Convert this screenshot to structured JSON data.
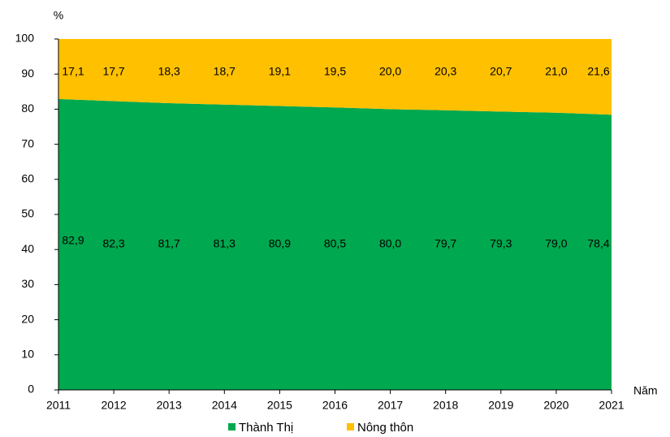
{
  "chart_data": {
    "type": "stacked_area",
    "x": [
      2011,
      2012,
      2013,
      2014,
      2015,
      2016,
      2017,
      2018,
      2019,
      2020,
      2021
    ],
    "series": [
      {
        "name": "Thành Thị",
        "color": "#00a84f",
        "values": [
          82.9,
          82.3,
          81.7,
          81.3,
          80.9,
          80.5,
          80.0,
          79.7,
          79.3,
          79.0,
          78.4
        ],
        "value_labels": [
          "82,9",
          "82,3",
          "81,7",
          "81,3",
          "80,9",
          "80,5",
          "80,0",
          "79,7",
          "79,3",
          "79,0",
          "78,4"
        ]
      },
      {
        "name": "Nông thôn",
        "color": "#ffc000",
        "values": [
          17.1,
          17.7,
          18.3,
          18.7,
          19.1,
          19.5,
          20.0,
          20.3,
          20.7,
          21.0,
          21.6
        ],
        "value_labels": [
          "17,1",
          "17,7",
          "18,3",
          "18,7",
          "19,1",
          "19,5",
          "20,0",
          "20,3",
          "20,7",
          "21,0",
          "21,6"
        ]
      }
    ],
    "y_label": "%",
    "x_label": "Năm",
    "xlim": [
      2011,
      2021
    ],
    "xticks": [
      2011,
      2012,
      2013,
      2014,
      2015,
      2016,
      2017,
      2018,
      2019,
      2020,
      2021
    ],
    "ylim": [
      0,
      100
    ],
    "yticks": [
      0,
      10,
      20,
      30,
      40,
      50,
      60,
      70,
      80,
      90,
      100
    ],
    "legend": "bottom"
  }
}
